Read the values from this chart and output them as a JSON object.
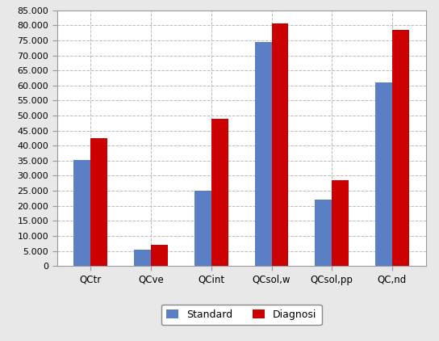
{
  "categories": [
    "QCtr",
    "QCve",
    "QCint",
    "QCsol,w",
    "QCsol,pp",
    "QC,nd"
  ],
  "standard": [
    35300,
    5500,
    25000,
    74500,
    22000,
    61000
  ],
  "diagnosi": [
    42500,
    7000,
    49000,
    80500,
    28500,
    78500
  ],
  "bar_color_standard": "#5B7FC4",
  "bar_color_diagnosi": "#CC0000",
  "legend_labels": [
    "Standard",
    "Diagnosi"
  ],
  "ylim": [
    0,
    85000
  ],
  "yticks": [
    0,
    5000,
    10000,
    15000,
    20000,
    25000,
    30000,
    35000,
    40000,
    45000,
    50000,
    55000,
    60000,
    65000,
    70000,
    75000,
    80000,
    85000
  ],
  "background_color": "#E8E8E8",
  "plot_background": "#FFFFFF",
  "grid_color": "#BBBBBB",
  "bar_width": 0.28,
  "figsize": [
    5.44,
    4.22
  ],
  "dpi": 100
}
